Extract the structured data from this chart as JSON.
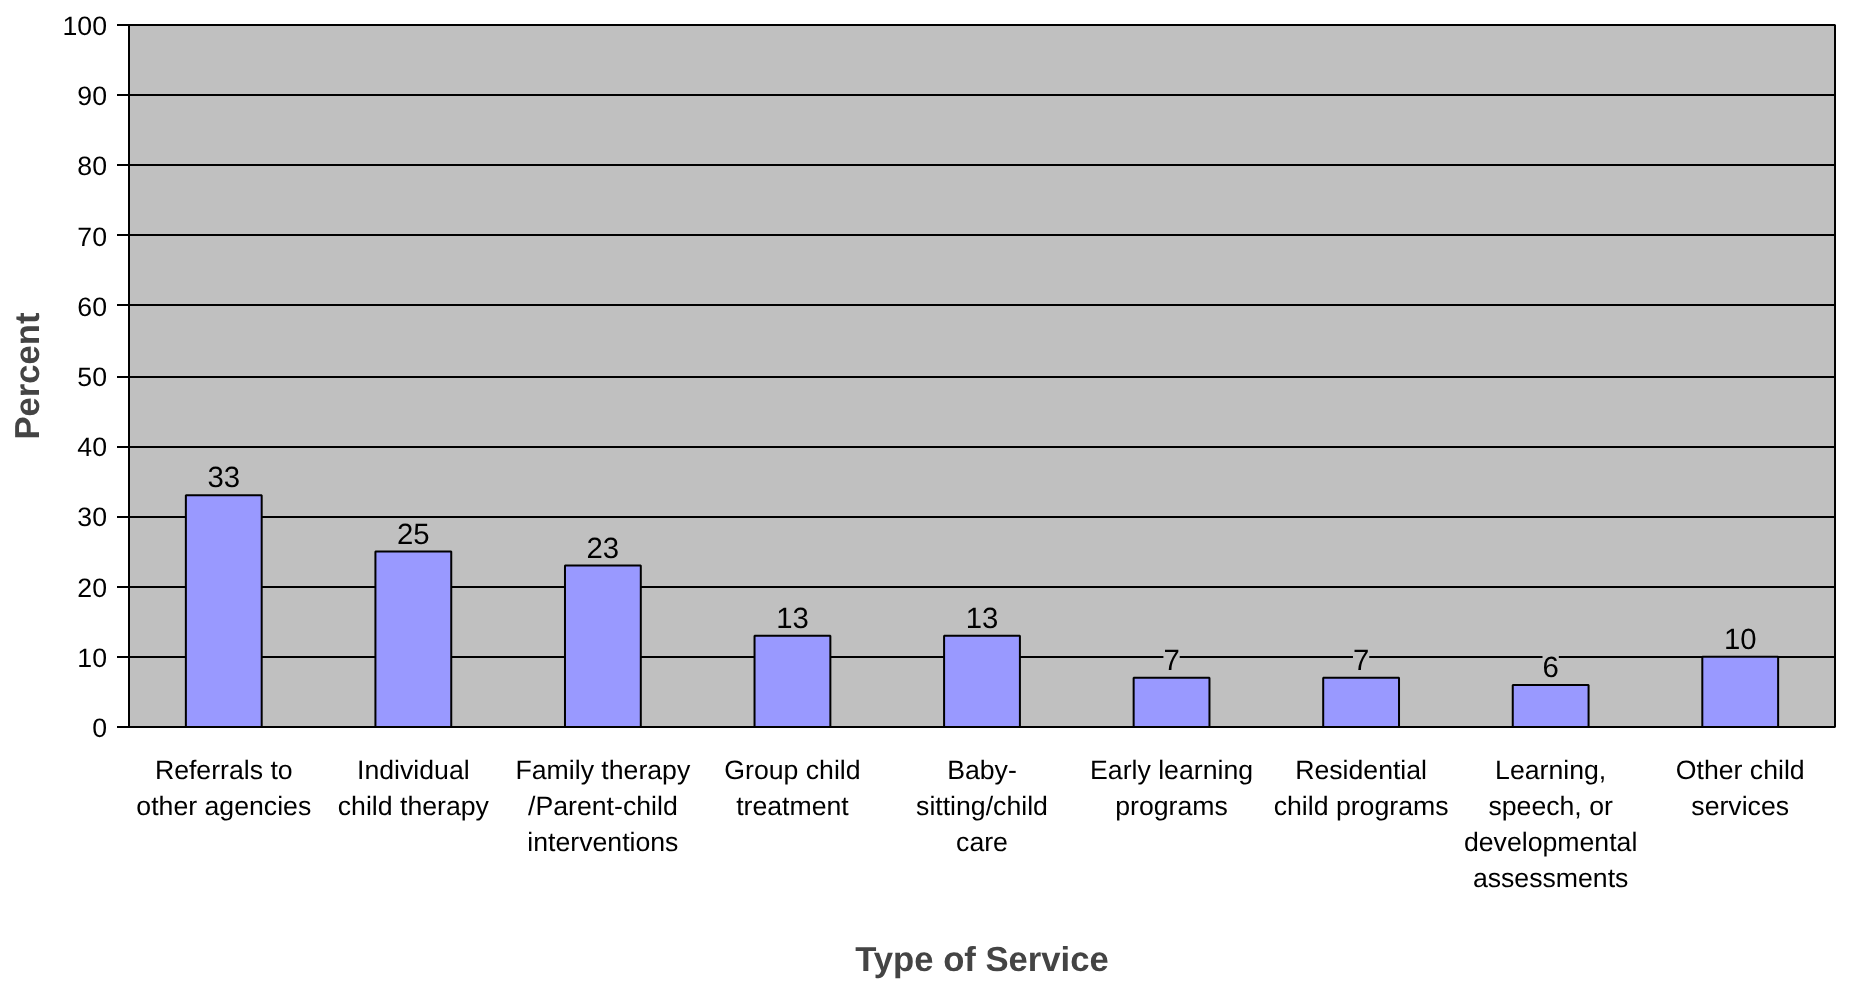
{
  "chart_data": {
    "type": "bar",
    "xlabel": "Type of Service",
    "ylabel": "Percent",
    "categories": [
      "Referrals to other agencies",
      "Individual child therapy",
      "Family therapy /Parent-child interventions",
      "Group child treatment",
      "Baby-sitting/child care",
      "Early learning programs",
      "Residential child programs",
      "Learning, speech, or developmental assessments",
      "Other child services"
    ],
    "values": [
      33,
      25,
      23,
      13,
      13,
      7,
      7,
      6,
      10
    ],
    "color": "#9999ff",
    "ylim": [
      0,
      100
    ],
    "yticks": [
      0,
      10,
      20,
      30,
      40,
      50,
      60,
      70,
      80,
      90,
      100
    ],
    "grid": "y",
    "data_labels": true
  }
}
